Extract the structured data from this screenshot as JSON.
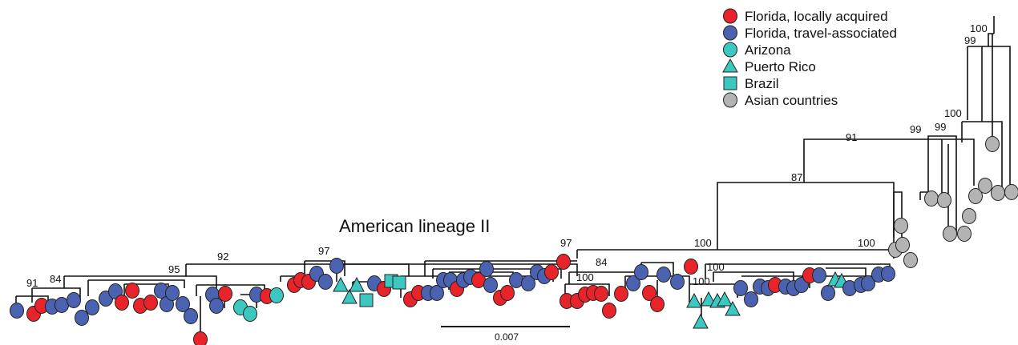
{
  "title": "American lineage II",
  "scale_bar": {
    "label": "0.007"
  },
  "colors": {
    "florida_local": "#e8232a",
    "florida_travel": "#4a62b0",
    "arizona": "#3cc7c0",
    "puerto_rico": "#3cc7c0",
    "brazil": "#3cc7c0",
    "asian": "#b3b3b3"
  },
  "legend": [
    {
      "label": "Florida, locally acquired",
      "shape": "circle",
      "color": "#e8232a"
    },
    {
      "label": "Florida, travel-associated",
      "shape": "circle",
      "color": "#4a62b0"
    },
    {
      "label": "Arizona",
      "shape": "circle",
      "color": "#3cc7c0"
    },
    {
      "label": "Puerto Rico",
      "shape": "triangle",
      "color": "#3cc7c0"
    },
    {
      "label": "Brazil",
      "shape": "square",
      "color": "#3cc7c0"
    },
    {
      "label": "Asian countries",
      "shape": "circle",
      "color": "#b3b3b3"
    }
  ],
  "bootstrap": {
    "b91a": "91",
    "b84a": "84",
    "b95": "95",
    "b92": "92",
    "b97a": "97",
    "b97b": "97",
    "b84b": "84",
    "b100a": "100",
    "b100root": "100",
    "b100c": "100",
    "b100d": "100",
    "b100e": "100",
    "b87": "87",
    "b91b": "91",
    "b99a": "99",
    "b99b": "99",
    "b100f": "100",
    "b99c": "99",
    "b100g": "100"
  }
}
